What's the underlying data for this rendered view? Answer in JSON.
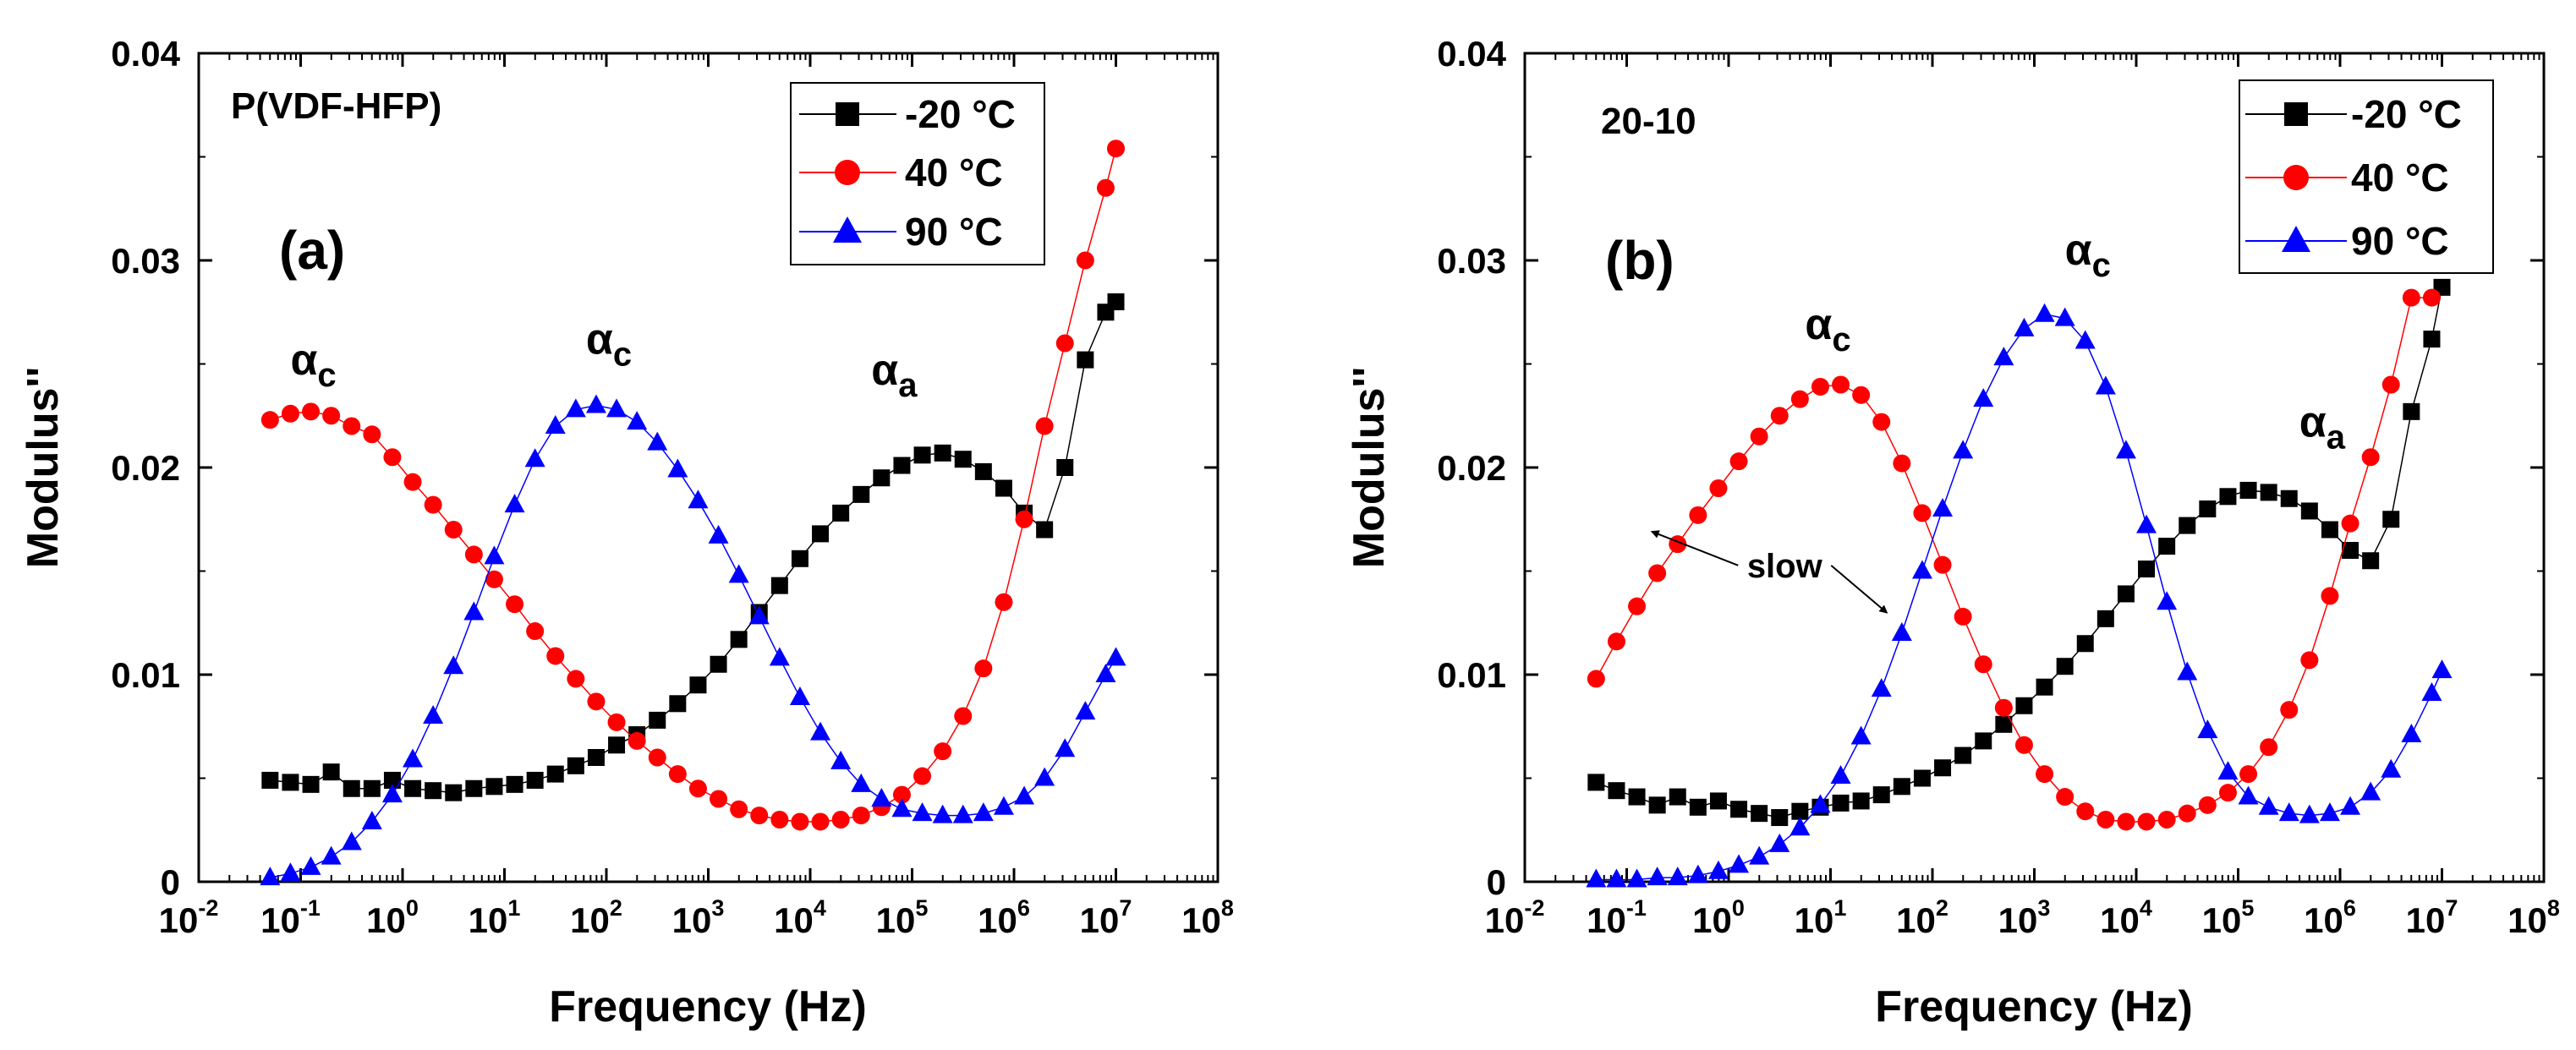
{
  "chart_data": [
    {
      "type": "line",
      "panel": "(a)",
      "sample_label": "P(VDF-HFP)",
      "xlabel": "Frequency (Hz)",
      "ylabel": "Modulus''",
      "xscale": "log",
      "xlim_exp": [
        -2,
        8
      ],
      "ylim": [
        0,
        0.04
      ],
      "x_tick_labels": [
        {
          "base": "10",
          "exp": "-2"
        },
        {
          "base": "10",
          "exp": "-1"
        },
        {
          "base": "10",
          "exp": "0"
        },
        {
          "base": "10",
          "exp": "1"
        },
        {
          "base": "10",
          "exp": "2"
        },
        {
          "base": "10",
          "exp": "3"
        },
        {
          "base": "10",
          "exp": "4"
        },
        {
          "base": "10",
          "exp": "5"
        },
        {
          "base": "10",
          "exp": "6"
        },
        {
          "base": "10",
          "exp": "7"
        },
        {
          "base": "10",
          "exp": "8"
        }
      ],
      "y_tick_labels": [
        "0",
        "0.01",
        "0.02",
        "0.03",
        "0.04"
      ],
      "legend_position": "top-right",
      "series": [
        {
          "name": "-20 °C",
          "color": "#000000",
          "marker": "square",
          "x_exp": [
            -1.3,
            -1.1,
            -0.9,
            -0.7,
            -0.5,
            -0.3,
            -0.1,
            0.1,
            0.3,
            0.5,
            0.7,
            0.9,
            1.1,
            1.3,
            1.5,
            1.7,
            1.9,
            2.1,
            2.3,
            2.5,
            2.7,
            2.9,
            3.1,
            3.3,
            3.5,
            3.7,
            3.9,
            4.1,
            4.3,
            4.5,
            4.7,
            4.9,
            5.1,
            5.3,
            5.5,
            5.7,
            5.9,
            6.1,
            6.3,
            6.5,
            6.7,
            6.9,
            7.0
          ],
          "values": [
            0.0049,
            0.0048,
            0.0047,
            0.0053,
            0.0045,
            0.0045,
            0.0049,
            0.0045,
            0.0044,
            0.0043,
            0.0045,
            0.0046,
            0.0047,
            0.0049,
            0.0052,
            0.0056,
            0.006,
            0.0066,
            0.0071,
            0.0078,
            0.0086,
            0.0095,
            0.0105,
            0.0117,
            0.013,
            0.0143,
            0.0156,
            0.0168,
            0.0178,
            0.0187,
            0.0195,
            0.0201,
            0.0206,
            0.0207,
            0.0204,
            0.0198,
            0.019,
            0.0178,
            0.017,
            0.02,
            0.0252,
            0.0275,
            0.028
          ]
        },
        {
          "name": "40 °C",
          "color": "#ff0000",
          "marker": "circle",
          "x_exp": [
            -1.3,
            -1.1,
            -0.9,
            -0.7,
            -0.5,
            -0.3,
            -0.1,
            0.1,
            0.3,
            0.5,
            0.7,
            0.9,
            1.1,
            1.3,
            1.5,
            1.7,
            1.9,
            2.1,
            2.3,
            2.5,
            2.7,
            2.9,
            3.1,
            3.3,
            3.5,
            3.7,
            3.9,
            4.1,
            4.3,
            4.5,
            4.7,
            4.9,
            5.1,
            5.3,
            5.5,
            5.7,
            5.9,
            6.1,
            6.3,
            6.5,
            6.7,
            6.9,
            7.0
          ],
          "values": [
            0.0223,
            0.0226,
            0.0227,
            0.0225,
            0.022,
            0.0216,
            0.0205,
            0.0193,
            0.0182,
            0.017,
            0.0158,
            0.0146,
            0.0134,
            0.0121,
            0.0109,
            0.0098,
            0.0087,
            0.0077,
            0.0068,
            0.006,
            0.0052,
            0.0045,
            0.004,
            0.0035,
            0.0032,
            0.003,
            0.0029,
            0.0029,
            0.003,
            0.0032,
            0.0036,
            0.0042,
            0.0051,
            0.0063,
            0.008,
            0.0103,
            0.0135,
            0.0175,
            0.022,
            0.026,
            0.03,
            0.0335,
            0.0354
          ]
        },
        {
          "name": "90 °C",
          "color": "#0000ff",
          "marker": "triangle",
          "x_exp": [
            -1.3,
            -1.1,
            -0.9,
            -0.7,
            -0.5,
            -0.3,
            -0.1,
            0.1,
            0.3,
            0.5,
            0.7,
            0.9,
            1.1,
            1.3,
            1.5,
            1.7,
            1.9,
            2.1,
            2.3,
            2.5,
            2.7,
            2.9,
            3.1,
            3.3,
            3.5,
            3.7,
            3.9,
            4.1,
            4.3,
            4.5,
            4.7,
            4.9,
            5.1,
            5.3,
            5.5,
            5.7,
            5.9,
            6.1,
            6.3,
            6.5,
            6.7,
            6.9,
            7.0
          ],
          "values": [
            0.0002,
            0.0004,
            0.0007,
            0.0012,
            0.0019,
            0.0029,
            0.0042,
            0.0059,
            0.008,
            0.0104,
            0.013,
            0.0157,
            0.0182,
            0.0204,
            0.022,
            0.0228,
            0.023,
            0.0228,
            0.0222,
            0.0212,
            0.0199,
            0.0184,
            0.0167,
            0.0148,
            0.0128,
            0.0108,
            0.0089,
            0.0072,
            0.0058,
            0.0047,
            0.004,
            0.0035,
            0.0033,
            0.0032,
            0.0032,
            0.0033,
            0.0036,
            0.0041,
            0.005,
            0.0064,
            0.0082,
            0.01,
            0.0108
          ]
        }
      ],
      "annotations": [
        {
          "greek": "α",
          "sub": "c",
          "x_exp": -1.1,
          "y": 0.0245
        },
        {
          "greek": "α",
          "sub": "c",
          "x_exp": 1.8,
          "y": 0.0255
        },
        {
          "greek": "α",
          "sub": "a",
          "x_exp": 4.6,
          "y": 0.024
        }
      ]
    },
    {
      "type": "line",
      "panel": "(b)",
      "sample_label": "20-10",
      "xlabel": "Frequency (Hz)",
      "ylabel": "Modulus''",
      "xscale": "log",
      "xlim_exp": [
        -2,
        8
      ],
      "ylim": [
        0,
        0.04
      ],
      "x_tick_labels": [
        {
          "base": "10",
          "exp": "-2"
        },
        {
          "base": "10",
          "exp": "-1"
        },
        {
          "base": "10",
          "exp": "0"
        },
        {
          "base": "10",
          "exp": "1"
        },
        {
          "base": "10",
          "exp": "2"
        },
        {
          "base": "10",
          "exp": "3"
        },
        {
          "base": "10",
          "exp": "4"
        },
        {
          "base": "10",
          "exp": "5"
        },
        {
          "base": "10",
          "exp": "6"
        },
        {
          "base": "10",
          "exp": "7"
        },
        {
          "base": "10",
          "exp": "8"
        }
      ],
      "y_tick_labels": [
        "0",
        "0.01",
        "0.02",
        "0.03",
        "0.04"
      ],
      "legend_position": "top-right",
      "series": [
        {
          "name": "-20 °C",
          "color": "#000000",
          "marker": "square",
          "x_exp": [
            -1.3,
            -1.1,
            -0.9,
            -0.7,
            -0.5,
            -0.3,
            -0.1,
            0.1,
            0.3,
            0.5,
            0.7,
            0.9,
            1.1,
            1.3,
            1.5,
            1.7,
            1.9,
            2.1,
            2.3,
            2.5,
            2.7,
            2.9,
            3.1,
            3.3,
            3.5,
            3.7,
            3.9,
            4.1,
            4.3,
            4.5,
            4.7,
            4.9,
            5.1,
            5.3,
            5.5,
            5.7,
            5.9,
            6.1,
            6.3,
            6.5,
            6.7,
            6.9,
            7.0
          ],
          "values": [
            0.0048,
            0.0044,
            0.0041,
            0.0037,
            0.0041,
            0.0036,
            0.0039,
            0.0035,
            0.0033,
            0.0031,
            0.0034,
            0.0036,
            0.0038,
            0.0039,
            0.0042,
            0.0046,
            0.005,
            0.0055,
            0.0061,
            0.0068,
            0.0076,
            0.0085,
            0.0094,
            0.0104,
            0.0115,
            0.0127,
            0.0139,
            0.0151,
            0.0162,
            0.0172,
            0.018,
            0.0186,
            0.0189,
            0.0188,
            0.0185,
            0.0179,
            0.017,
            0.016,
            0.0155,
            0.0175,
            0.0227,
            0.0262,
            0.0287
          ]
        },
        {
          "name": "40 °C",
          "color": "#ff0000",
          "marker": "circle",
          "x_exp": [
            -1.3,
            -1.1,
            -0.9,
            -0.7,
            -0.5,
            -0.3,
            -0.1,
            0.1,
            0.3,
            0.5,
            0.7,
            0.9,
            1.1,
            1.3,
            1.5,
            1.7,
            1.9,
            2.1,
            2.3,
            2.5,
            2.7,
            2.9,
            3.1,
            3.3,
            3.5,
            3.7,
            3.9,
            4.1,
            4.3,
            4.5,
            4.7,
            4.9,
            5.1,
            5.3,
            5.5,
            5.7,
            5.9,
            6.1,
            6.3,
            6.5,
            6.7,
            6.9
          ],
          "values": [
            0.0098,
            0.0116,
            0.0133,
            0.0149,
            0.0163,
            0.0177,
            0.019,
            0.0203,
            0.0215,
            0.0225,
            0.0233,
            0.0239,
            0.024,
            0.0235,
            0.0222,
            0.0202,
            0.0178,
            0.0153,
            0.0128,
            0.0105,
            0.0084,
            0.0066,
            0.0052,
            0.0041,
            0.0034,
            0.003,
            0.0029,
            0.0029,
            0.003,
            0.0033,
            0.0037,
            0.0043,
            0.0052,
            0.0065,
            0.0083,
            0.0107,
            0.0138,
            0.0173,
            0.0205,
            0.024,
            0.0282,
            0.0282
          ]
        },
        {
          "name": "90 °C",
          "color": "#0000ff",
          "marker": "triangle",
          "x_exp": [
            -1.3,
            -1.1,
            -0.9,
            -0.7,
            -0.5,
            -0.3,
            -0.1,
            0.1,
            0.3,
            0.5,
            0.7,
            0.9,
            1.1,
            1.3,
            1.5,
            1.7,
            1.9,
            2.1,
            2.3,
            2.5,
            2.7,
            2.9,
            3.1,
            3.3,
            3.5,
            3.7,
            3.9,
            4.1,
            4.3,
            4.5,
            4.7,
            4.9,
            5.1,
            5.3,
            5.5,
            5.7,
            5.9,
            6.1,
            6.3,
            6.5,
            6.7,
            6.9,
            7.0
          ],
          "values": [
            0.0001,
            0.0001,
            0.0001,
            0.0002,
            0.0002,
            0.0003,
            0.0005,
            0.0008,
            0.0012,
            0.0018,
            0.0026,
            0.0037,
            0.0051,
            0.007,
            0.0093,
            0.012,
            0.015,
            0.018,
            0.0208,
            0.0233,
            0.0253,
            0.0267,
            0.0274,
            0.0272,
            0.0261,
            0.0239,
            0.0208,
            0.0172,
            0.0135,
            0.0101,
            0.0073,
            0.0053,
            0.0041,
            0.0036,
            0.0033,
            0.0032,
            0.0033,
            0.0036,
            0.0043,
            0.0054,
            0.0071,
            0.0091,
            0.0102
          ]
        }
      ],
      "annotations": [
        {
          "greek": "α",
          "sub": "c",
          "x_exp": 0.75,
          "y": 0.0262
        },
        {
          "greek": "α",
          "sub": "c",
          "x_exp": 3.3,
          "y": 0.0298
        },
        {
          "greek": "α",
          "sub": "a",
          "x_exp": 5.6,
          "y": 0.0215
        }
      ],
      "note": {
        "text": "slow",
        "x_exp": 0.55,
        "y": 0.0147,
        "arrows_to": [
          {
            "x_exp": -0.75,
            "y": 0.0169
          },
          {
            "x_exp": 1.55,
            "y": 0.013
          }
        ]
      }
    }
  ]
}
